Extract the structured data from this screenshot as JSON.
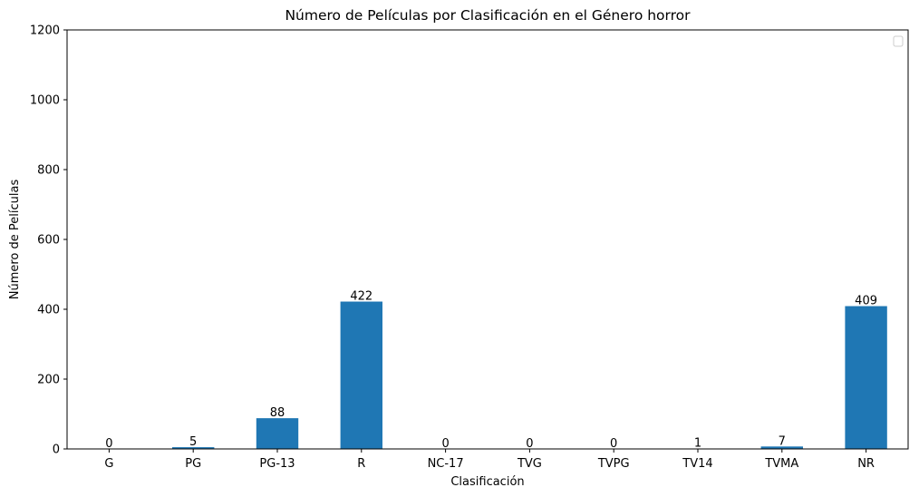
{
  "chart_data": {
    "type": "bar",
    "title": "Número de Películas por Clasificación en el Género horror",
    "xlabel": "Clasificación",
    "ylabel": "Número de Películas",
    "categories": [
      "G",
      "PG",
      "PG-13",
      "R",
      "NC-17",
      "TVG",
      "TVPG",
      "TV14",
      "TVMA",
      "NR"
    ],
    "values": [
      0,
      5,
      88,
      422,
      0,
      0,
      0,
      1,
      7,
      409
    ],
    "ylim": [
      0,
      1200
    ],
    "yticks": [
      0,
      200,
      400,
      600,
      800,
      1000,
      1200
    ],
    "grid": false,
    "legend": {
      "placement": "top-right",
      "entries": []
    },
    "colors": {
      "bar": "#1f77b4",
      "axis": "#000000",
      "background": "#ffffff"
    }
  }
}
